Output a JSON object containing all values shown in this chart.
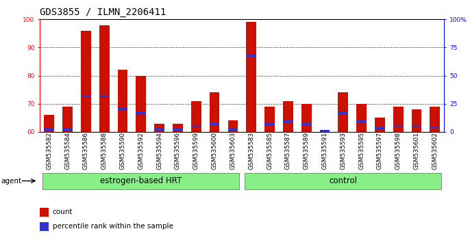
{
  "title": "GDS3855 / ILMN_2206411",
  "samples": [
    "GSM535582",
    "GSM535584",
    "GSM535586",
    "GSM535588",
    "GSM535590",
    "GSM535592",
    "GSM535594",
    "GSM535596",
    "GSM535599",
    "GSM535600",
    "GSM535603",
    "GSM535583",
    "GSM535585",
    "GSM535587",
    "GSM535589",
    "GSM535591",
    "GSM535593",
    "GSM535595",
    "GSM535597",
    "GSM535598",
    "GSM535601",
    "GSM535602"
  ],
  "count_values": [
    66,
    69,
    96,
    98,
    82,
    80,
    63,
    63,
    71,
    74,
    64,
    99,
    69,
    71,
    70,
    60,
    74,
    70,
    65,
    69,
    68,
    69
  ],
  "percentile_values": [
    2,
    2,
    32,
    32,
    20,
    17,
    2,
    2,
    5,
    7,
    2,
    68,
    7,
    9,
    7,
    1,
    17,
    9,
    3,
    5,
    5,
    4
  ],
  "n_group1": 11,
  "n_group2": 11,
  "group1_label": "estrogen-based HRT",
  "group2_label": "control",
  "group_color": "#88EE88",
  "ylim_left": [
    60,
    100
  ],
  "ylim_right": [
    0,
    100
  ],
  "yticks_left": [
    60,
    70,
    80,
    90,
    100
  ],
  "yticks_right": [
    0,
    25,
    50,
    75,
    100
  ],
  "ytick_labels_right": [
    "0",
    "25",
    "50",
    "75",
    "100%"
  ],
  "bar_color_red": "#CC1100",
  "bar_color_blue": "#3333CC",
  "bar_width": 0.55,
  "background_color": "#ffffff",
  "title_fontsize": 10,
  "tick_fontsize": 6.5,
  "group_fontsize": 8.5,
  "legend_fontsize": 7.5
}
